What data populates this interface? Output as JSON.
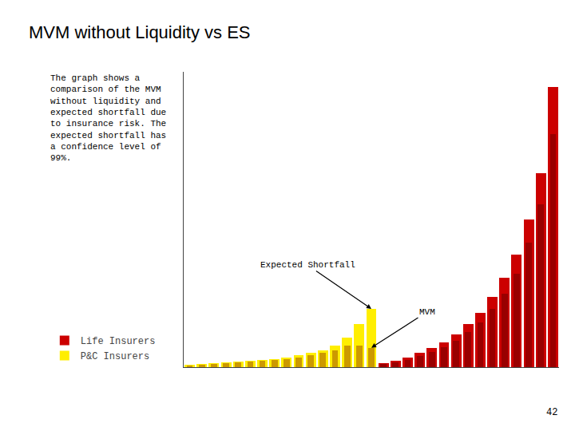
{
  "chart_data": {
    "type": "bar",
    "title": "MVM without Liquidity vs ES",
    "description": "The graph shows a\ncomparison of the MVM\nwithout liquidity and\nexpected shortfall due\nto insurance risk. The\nexpected shortfall has\na confidence level of\n99%.",
    "page_number": "42",
    "categories": [
      null,
      null,
      null,
      null,
      null,
      null,
      null,
      null,
      null,
      null,
      null,
      null,
      null,
      null,
      null,
      null,
      null,
      null,
      null,
      null,
      null,
      null,
      null,
      null,
      null,
      null,
      null,
      null,
      null,
      null,
      null
    ],
    "series": [
      {
        "name": "P&C Insurers",
        "color": "#ffee00",
        "values": [
          0.3,
          0.4,
          0.5,
          0.6,
          0.7,
          0.8,
          0.9,
          1.0,
          1.2,
          1.5,
          1.8,
          2.2,
          2.8,
          3.8,
          5.5,
          7.5,
          null,
          null,
          null,
          null,
          null,
          null,
          null,
          null,
          null,
          null,
          null,
          null,
          null,
          null,
          null
        ]
      },
      {
        "color": "#cc9900",
        "values": [
          0.25,
          0.35,
          0.45,
          0.55,
          0.65,
          0.75,
          0.85,
          0.9,
          1.0,
          1.2,
          1.5,
          1.8,
          2.2,
          2.8,
          2.8,
          2.5,
          null,
          null,
          null,
          null,
          null,
          null,
          null,
          null,
          null,
          null,
          null,
          null,
          null,
          null,
          null
        ]
      },
      {
        "name": "Life Insurers",
        "color": "#cc0000",
        "values": [
          null,
          null,
          null,
          null,
          null,
          null,
          null,
          null,
          null,
          null,
          null,
          null,
          null,
          null,
          null,
          null,
          0.5,
          0.8,
          1.2,
          1.8,
          2.5,
          3.2,
          4.2,
          5.5,
          7.0,
          9.0,
          11.5,
          14.5,
          19.0,
          25.0,
          36.0
        ]
      },
      {
        "color": "#990000",
        "values": [
          null,
          null,
          null,
          null,
          null,
          null,
          null,
          null,
          null,
          null,
          null,
          null,
          null,
          null,
          null,
          null,
          0.4,
          0.6,
          0.9,
          1.4,
          2.0,
          2.6,
          3.4,
          4.5,
          5.8,
          7.5,
          9.5,
          12.0,
          16.0,
          21.0,
          30.0
        ]
      }
    ],
    "annotations": [
      {
        "text": "Expected Shortfall",
        "series": 0,
        "index": 15
      },
      {
        "text": "MVM",
        "series": 1,
        "index": 15
      }
    ],
    "ylim": [
      0,
      38
    ],
    "tick_labels": false,
    "grid": false,
    "legend": "lower left"
  }
}
